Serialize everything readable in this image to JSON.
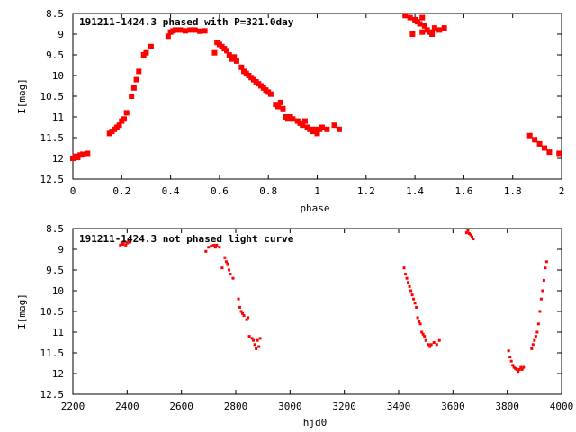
{
  "figure": {
    "background": "#ffffff",
    "point_color": "#ff0000"
  },
  "chart_data": [
    {
      "type": "scatter",
      "title": "191211-1424.3 phased with P=321.0day",
      "xlabel": "phase",
      "ylabel": "I[mag]",
      "xlim": [
        0,
        2
      ],
      "ylim": [
        12.5,
        8.5
      ],
      "y_inverted": true,
      "grid": false,
      "xticks": [
        0,
        0.2,
        0.4,
        0.6,
        0.8,
        1,
        1.2,
        1.4,
        1.6,
        1.8,
        2
      ],
      "xtick_labels": [
        "0",
        "0.2",
        "0.4",
        "0.6",
        "0.8",
        "1",
        "1.2",
        "1.4",
        "1.6",
        "1.8",
        "2"
      ],
      "yticks": [
        8.5,
        9,
        9.5,
        10,
        10.5,
        11,
        11.5,
        12,
        12.5
      ],
      "ytick_labels": [
        "8.5",
        "9",
        "9.5",
        "10",
        "10.5",
        "11",
        "11.5",
        "12",
        "12.5"
      ],
      "marker": "large",
      "series": [
        {
          "color": "#ff0000",
          "x": [
            0.0,
            0.01,
            0.02,
            0.03,
            0.04,
            0.06,
            0.15,
            0.16,
            0.17,
            0.18,
            0.19,
            0.2,
            0.21,
            0.22,
            0.24,
            0.25,
            0.26,
            0.27,
            0.29,
            0.3,
            0.32,
            0.39,
            0.4,
            0.41,
            0.42,
            0.44,
            0.46,
            0.48,
            0.5,
            0.52,
            0.54,
            0.58,
            0.59,
            0.6,
            0.61,
            0.62,
            0.63,
            0.64,
            0.65,
            0.66,
            0.67,
            0.69,
            0.7,
            0.71,
            0.72,
            0.73,
            0.74,
            0.75,
            0.76,
            0.77,
            0.78,
            0.79,
            0.8,
            0.81,
            0.83,
            0.84,
            0.85,
            0.86,
            0.87,
            0.88,
            0.89,
            0.9,
            0.92,
            0.93,
            0.94,
            0.95,
            0.96,
            0.97,
            0.98,
            0.99,
            1.0,
            1.01,
            1.02,
            1.04,
            1.07,
            1.09,
            1.36,
            1.38,
            1.4,
            1.41,
            1.42,
            1.43,
            1.44,
            1.45,
            1.46,
            1.47,
            1.48,
            1.5,
            1.52,
            1.39,
            1.43,
            1.87,
            1.89,
            1.91,
            1.93,
            1.95,
            1.99
          ],
          "y": [
            12.0,
            11.95,
            11.98,
            11.92,
            11.9,
            11.88,
            11.4,
            11.35,
            11.3,
            11.25,
            11.2,
            11.1,
            11.05,
            10.9,
            10.5,
            10.3,
            10.1,
            9.9,
            9.5,
            9.45,
            9.3,
            9.05,
            8.95,
            8.92,
            8.9,
            8.9,
            8.92,
            8.9,
            8.9,
            8.93,
            8.92,
            9.45,
            9.2,
            9.25,
            9.3,
            9.35,
            9.4,
            9.5,
            9.6,
            9.55,
            9.65,
            9.8,
            9.9,
            9.95,
            10.0,
            10.05,
            10.1,
            10.15,
            10.2,
            10.25,
            10.3,
            10.35,
            10.4,
            10.45,
            10.7,
            10.75,
            10.65,
            10.8,
            11.0,
            11.05,
            11.0,
            11.05,
            11.1,
            11.15,
            11.2,
            11.1,
            11.25,
            11.3,
            11.35,
            11.3,
            11.4,
            11.3,
            11.25,
            11.3,
            11.2,
            11.3,
            8.55,
            8.6,
            8.65,
            8.7,
            8.75,
            8.6,
            8.8,
            8.9,
            8.95,
            9.0,
            8.85,
            8.9,
            8.85,
            9.0,
            8.95,
            11.45,
            11.55,
            11.65,
            11.75,
            11.85,
            11.88
          ]
        }
      ]
    },
    {
      "type": "scatter",
      "title": "191211-1424.3 not phased light curve",
      "xlabel": "hjd0",
      "ylabel": "I[mag]",
      "xlim": [
        2200,
        4000
      ],
      "ylim": [
        12.5,
        8.5
      ],
      "y_inverted": true,
      "grid": false,
      "xticks": [
        2200,
        2400,
        2600,
        2800,
        3000,
        3200,
        3400,
        3600,
        3800,
        4000
      ],
      "xtick_labels": [
        "2200",
        "2400",
        "2600",
        "2800",
        "3000",
        "3200",
        "3400",
        "3600",
        "3800",
        "4000"
      ],
      "yticks": [
        8.5,
        9,
        9.5,
        10,
        10.5,
        11,
        11.5,
        12,
        12.5
      ],
      "ytick_labels": [
        "8.5",
        "9",
        "9.5",
        "10",
        "10.5",
        "11",
        "11.5",
        "12",
        "12.5"
      ],
      "marker": "small",
      "series": [
        {
          "color": "#ff0000",
          "x": [
            2375,
            2380,
            2385,
            2390,
            2395,
            2400,
            2405,
            2410,
            2690,
            2700,
            2710,
            2720,
            2725,
            2730,
            2740,
            2750,
            2760,
            2765,
            2770,
            2775,
            2780,
            2790,
            2810,
            2815,
            2820,
            2825,
            2830,
            2840,
            2845,
            2850,
            2860,
            2865,
            2870,
            2875,
            2880,
            2885,
            2890,
            3420,
            3425,
            3430,
            3435,
            3440,
            3445,
            3450,
            3455,
            3460,
            3465,
            3470,
            3475,
            3480,
            3485,
            3490,
            3495,
            3500,
            3510,
            3515,
            3520,
            3530,
            3540,
            3550,
            3650,
            3655,
            3660,
            3665,
            3670,
            3675,
            3805,
            3810,
            3815,
            3820,
            3825,
            3830,
            3835,
            3840,
            3845,
            3850,
            3855,
            3860,
            3890,
            3895,
            3900,
            3905,
            3910,
            3915,
            3920,
            3925,
            3930,
            3935,
            3940,
            3945
          ],
          "y": [
            8.9,
            8.85,
            8.88,
            8.82,
            8.9,
            8.85,
            8.8,
            8.83,
            9.05,
            8.95,
            8.92,
            8.9,
            8.95,
            8.9,
            8.95,
            9.45,
            9.2,
            9.3,
            9.35,
            9.5,
            9.6,
            9.7,
            10.2,
            10.4,
            10.5,
            10.55,
            10.6,
            10.7,
            10.65,
            11.1,
            11.15,
            11.2,
            11.3,
            11.4,
            11.2,
            11.35,
            11.15,
            9.45,
            9.6,
            9.7,
            9.8,
            9.9,
            10.0,
            10.1,
            10.2,
            10.3,
            10.4,
            10.65,
            10.75,
            10.8,
            11.0,
            11.05,
            11.1,
            11.2,
            11.3,
            11.35,
            11.3,
            11.25,
            11.3,
            11.2,
            8.6,
            8.55,
            8.62,
            8.65,
            8.7,
            8.75,
            11.45,
            11.6,
            11.7,
            11.8,
            11.85,
            11.88,
            11.9,
            11.95,
            11.9,
            11.85,
            11.9,
            11.85,
            11.4,
            11.3,
            11.2,
            11.1,
            11.0,
            10.8,
            10.5,
            10.2,
            10.0,
            9.75,
            9.45,
            9.3
          ]
        }
      ]
    }
  ]
}
